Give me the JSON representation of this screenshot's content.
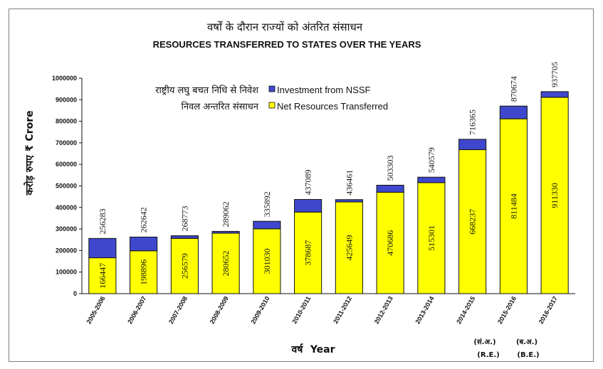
{
  "title_hindi": "वर्षों के दौरान राज्यों को अंतरित संसाधन",
  "title_english": "RESOURCES TRANSFERRED TO STATES OVER THE YEARS",
  "y_axis_label": "करोड़ रुपए ₹ Crore",
  "x_axis_label_hindi": "वर्ष",
  "x_axis_label_english": "Year",
  "legend": {
    "nssf_hindi": "राष्ट्रीय लघु बचत निधि से निवेश",
    "nssf_english": "Investment from NSSF",
    "net_hindi": "निवल अन्तरित संसाधन",
    "net_english": "Net Resources Transferred"
  },
  "notes": {
    "re_hindi": "(सं.अ.)",
    "re_english": "(R.E.)",
    "be_hindi": "(ब.अ.)",
    "be_english": "(B.E.)"
  },
  "colors": {
    "net": "#ffff00",
    "nssf": "#3f48cc",
    "axis": "#111111"
  },
  "chart_data": {
    "type": "bar",
    "stacked": true,
    "categories": [
      "2005-2006",
      "2006-2007",
      "2007-2008",
      "2008-2009",
      "2009-2010",
      "2010-2011",
      "2011-2012",
      "2012-2013",
      "2013-2014",
      "2014-2015",
      "2015-2016",
      "2016-2017"
    ],
    "series": [
      {
        "name": "Net Resources Transferred",
        "values": [
          166447,
          198896,
          256579,
          280652,
          301030,
          378687,
          425649,
          470686,
          515301,
          668237,
          811484,
          911330
        ]
      },
      {
        "name": "Investment from NSSF",
        "values": [
          89836,
          63746,
          12194,
          8410,
          34862,
          58402,
          10812,
          32617,
          25278,
          48128,
          59190,
          26375
        ]
      }
    ],
    "totals": [
      256283,
      262642,
      268773,
      289062,
      335892,
      437089,
      436461,
      503303,
      540579,
      716365,
      870674,
      937705
    ],
    "y_ticks": [
      "0",
      "100000",
      "200000",
      "300000",
      "400000",
      "500000",
      "600000",
      "700000",
      "800000",
      "900000",
      "1000000"
    ],
    "ylim": [
      0,
      1000000
    ],
    "legend_position": "top-left"
  }
}
